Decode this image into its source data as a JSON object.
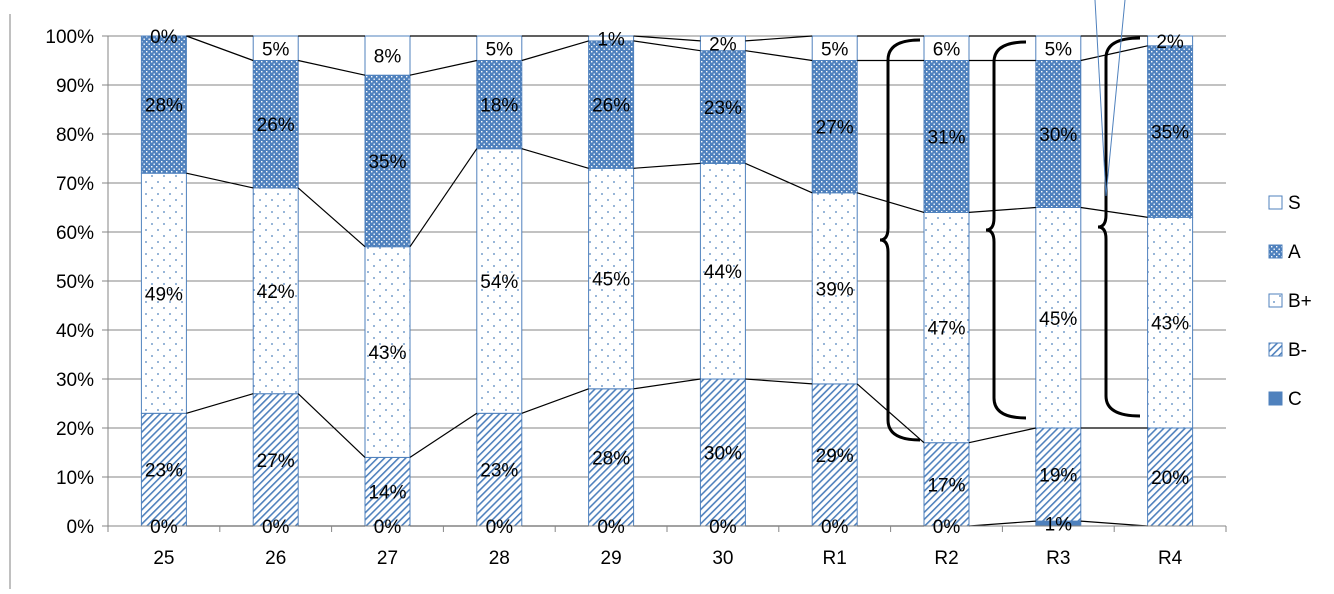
{
  "chart_data": {
    "type": "bar",
    "stacked": true,
    "percent_stacked": true,
    "categories": [
      "25",
      "26",
      "27",
      "28",
      "29",
      "30",
      "R1",
      "R2",
      "R3",
      "R4"
    ],
    "series": [
      {
        "name": "C",
        "values": [
          0,
          0,
          0,
          0,
          0,
          0,
          0,
          0,
          1,
          0
        ],
        "labels": [
          "0%",
          "0%",
          "0%",
          "0%",
          "0%",
          "0%",
          "0%",
          "0%",
          "1%",
          ""
        ]
      },
      {
        "name": "B-",
        "values": [
          23,
          27,
          14,
          23,
          28,
          30,
          29,
          17,
          19,
          20
        ],
        "labels": [
          "23%",
          "27%",
          "14%",
          "23%",
          "28%",
          "30%",
          "29%",
          "17%",
          "19%",
          "20%"
        ]
      },
      {
        "name": "B+",
        "values": [
          49,
          42,
          43,
          54,
          45,
          44,
          39,
          47,
          45,
          43
        ],
        "labels": [
          "49%",
          "42%",
          "43%",
          "54%",
          "45%",
          "44%",
          "39%",
          "47%",
          "45%",
          "43%"
        ]
      },
      {
        "name": "A",
        "values": [
          28,
          26,
          35,
          18,
          26,
          23,
          27,
          31,
          30,
          35
        ],
        "labels": [
          "28%",
          "26%",
          "35%",
          "18%",
          "26%",
          "23%",
          "27%",
          "31%",
          "30%",
          "35%"
        ]
      },
      {
        "name": "S",
        "values": [
          0,
          5,
          8,
          5,
          1,
          2,
          5,
          6,
          5,
          2
        ],
        "labels": [
          "0%",
          "5%",
          "8%",
          "5%",
          "1%",
          "2%",
          "5%",
          "6%",
          "5%",
          "2%"
        ]
      }
    ],
    "y_ticks": [
      "0%",
      "10%",
      "20%",
      "30%",
      "40%",
      "50%",
      "60%",
      "70%",
      "80%",
      "90%",
      "100%"
    ],
    "ylim": [
      0,
      100
    ],
    "grid": true,
    "legend_position": "right",
    "legend": [
      "S",
      "A",
      "B+",
      "B-",
      "C"
    ],
    "series_lines": true,
    "colors": {
      "outline": "#4f81bd",
      "fill_dark": "#4f81bd",
      "fill_light": "#ffffff",
      "grid": "#868686"
    },
    "title": "",
    "xlabel": "",
    "ylabel": ""
  }
}
